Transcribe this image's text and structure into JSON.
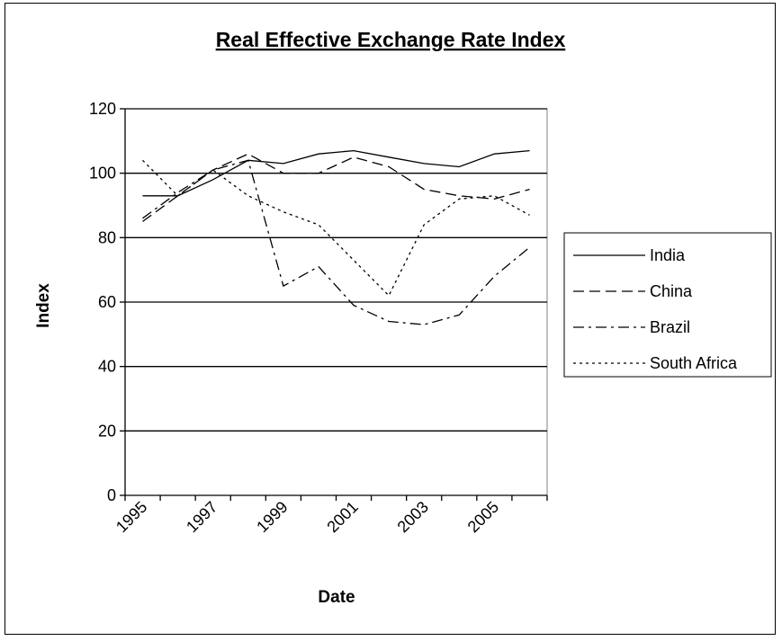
{
  "chart_data": {
    "type": "line",
    "title": "Real Effective Exchange Rate Index",
    "xlabel": "Date",
    "ylabel": "Index",
    "ylim": [
      0,
      120
    ],
    "yticks": [
      0,
      20,
      40,
      60,
      80,
      100,
      120
    ],
    "xticks": [
      "1995",
      "1997",
      "1999",
      "2001",
      "2003",
      "2005"
    ],
    "x": [
      "1995",
      "1996",
      "1997",
      "1998",
      "1999",
      "2000",
      "2001",
      "2002",
      "2003",
      "2004",
      "2005",
      "2006"
    ],
    "grid": "horizontal",
    "legend_position": "right",
    "series": [
      {
        "name": "India",
        "style": "solid",
        "values": [
          93,
          93,
          98,
          104,
          103,
          106,
          107,
          105,
          103,
          102,
          106,
          107
        ]
      },
      {
        "name": "China",
        "style": "dashed",
        "values": [
          85,
          93,
          101,
          106,
          100,
          100,
          105,
          102,
          95,
          93,
          92,
          95
        ]
      },
      {
        "name": "Brazil",
        "style": "dashdot",
        "values": [
          86,
          94,
          101,
          104,
          65,
          71,
          59,
          54,
          53,
          56,
          68,
          77
        ]
      },
      {
        "name": "South Africa",
        "style": "dotted",
        "values": [
          104,
          93,
          101,
          93,
          88,
          84,
          73,
          62,
          84,
          92,
          93,
          87
        ]
      }
    ]
  }
}
